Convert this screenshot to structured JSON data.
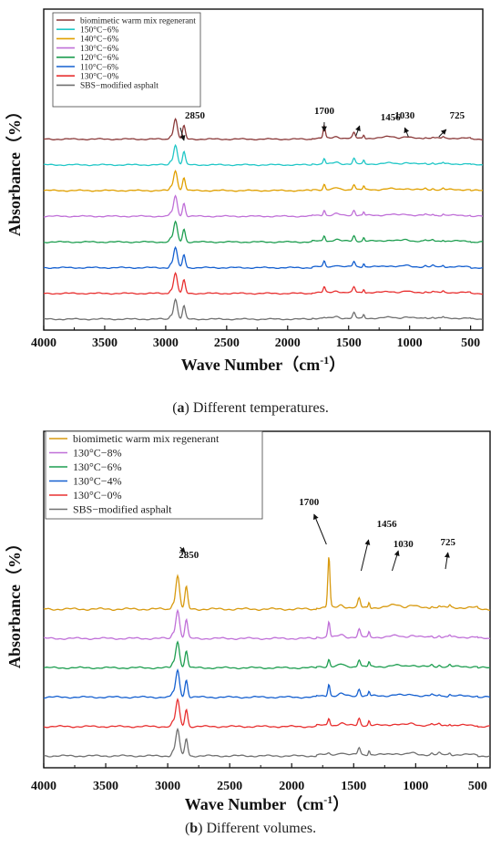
{
  "chart_data": [
    {
      "type": "line",
      "panel_letter": "a",
      "caption": "Different temperatures.",
      "xlabel": "Wave Number（cm",
      "xlabel_sup": "-1",
      "xlabel_end": "）",
      "ylabel": "Absorbance（%）",
      "x_ticks": [
        4000,
        3500,
        3000,
        2500,
        2000,
        1500,
        1000,
        500
      ],
      "xlim": [
        4000,
        400
      ],
      "x_reversed": true,
      "yticks_shown": false,
      "grid": false,
      "legend": "top-left",
      "series": [
        {
          "name": "biomimetic warm mix regenerant",
          "color": "#8B3A3A"
        },
        {
          "name": "150°C−6%",
          "color": "#22C7C7"
        },
        {
          "name": "140°C−6%",
          "color": "#E0A000"
        },
        {
          "name": "130°C−6%",
          "color": "#C070D8"
        },
        {
          "name": "120°C−6%",
          "color": "#1E9E50"
        },
        {
          "name": "110°C−6%",
          "color": "#1560D0"
        },
        {
          "name": "130°C−0%",
          "color": "#E83030"
        },
        {
          "name": "SBS−modified asphalt",
          "color": "#707070"
        }
      ],
      "annotations": [
        {
          "label": "2850",
          "x": 2850
        },
        {
          "label": "1700",
          "x": 1700
        },
        {
          "label": "1456",
          "x": 1456
        },
        {
          "label": "1030",
          "x": 1030
        },
        {
          "label": "725",
          "x": 725
        }
      ]
    },
    {
      "type": "line",
      "panel_letter": "b",
      "caption": "Different volumes.",
      "xlabel": "Wave Number（cm",
      "xlabel_sup": "-1",
      "xlabel_end": "）",
      "ylabel": "Absorbance（%）",
      "x_ticks": [
        4000,
        3500,
        3000,
        2500,
        2000,
        1500,
        1000,
        500
      ],
      "xlim": [
        4000,
        400
      ],
      "x_reversed": true,
      "yticks_shown": false,
      "grid": false,
      "legend": "top-left",
      "series": [
        {
          "name": "biomimetic warm mix regenerant",
          "color": "#D89A10"
        },
        {
          "name": "130°C−8%",
          "color": "#C070D8"
        },
        {
          "name": "130°C−6%",
          "color": "#1E9E50"
        },
        {
          "name": "130°C−4%",
          "color": "#1560D0"
        },
        {
          "name": "130°C−0%",
          "color": "#E83030"
        },
        {
          "name": "SBS−modified asphalt",
          "color": "#707070"
        }
      ],
      "annotations": [
        {
          "label": "2850",
          "x": 2850
        },
        {
          "label": "1700",
          "x": 1700
        },
        {
          "label": "1456",
          "x": 1456
        },
        {
          "label": "1030",
          "x": 1030
        },
        {
          "label": "725",
          "x": 725
        }
      ]
    }
  ]
}
